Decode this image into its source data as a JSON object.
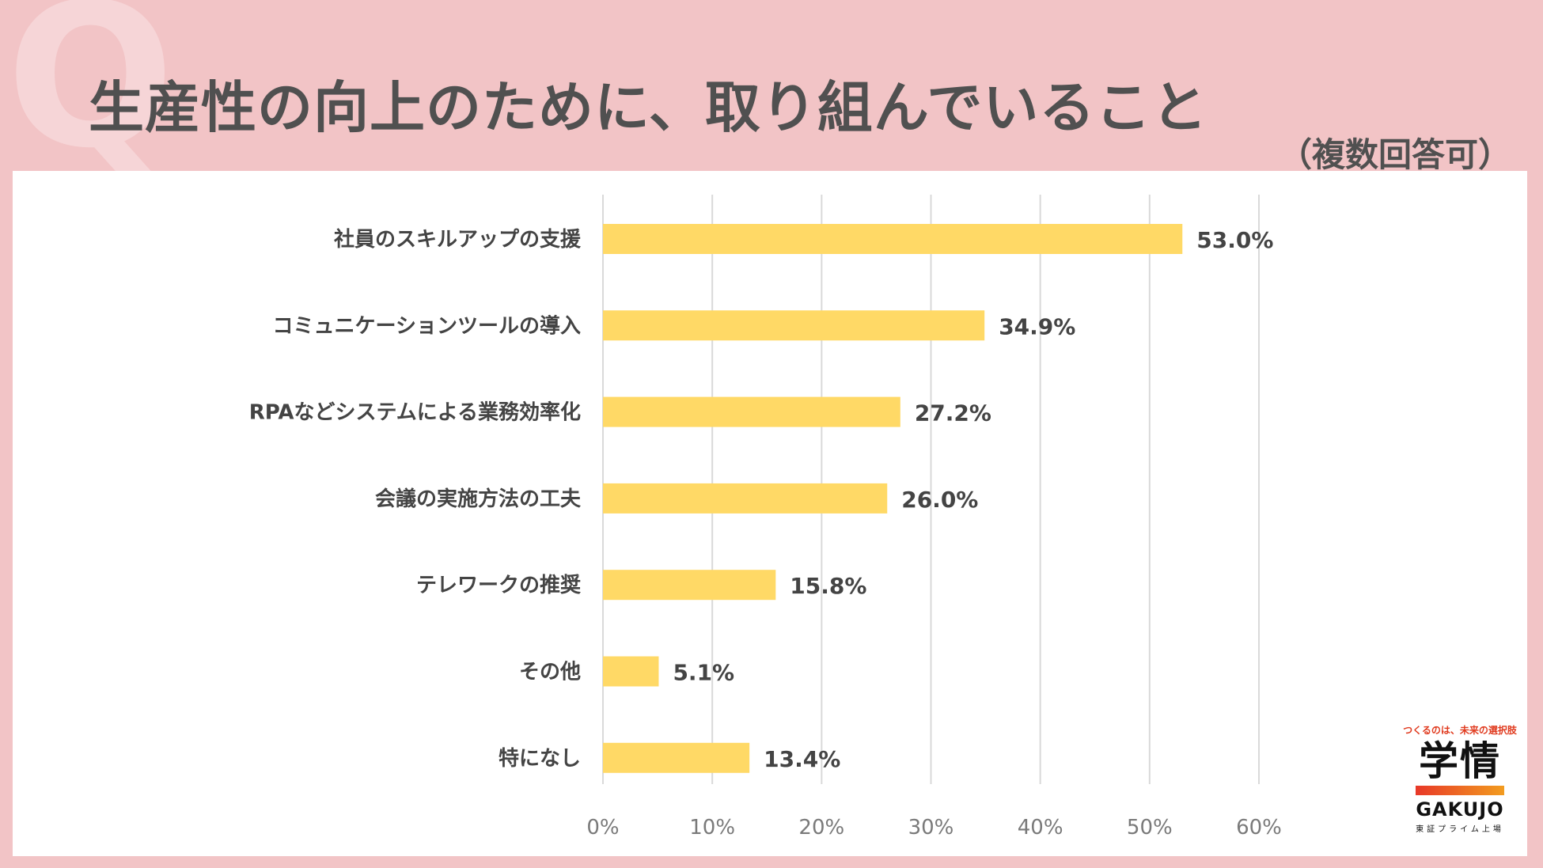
{
  "q_mark": "Q",
  "title": "生産性の向上のために、取り組んでいること",
  "subtitle": "（複数回答可）",
  "chart_data": {
    "type": "bar",
    "orientation": "horizontal",
    "categories": [
      "社員のスキルアップの支援",
      "コミュニケーションツールの導入",
      "RPAなどシステムによる業務効率化",
      "会議の実施方法の工夫",
      "テレワークの推奨",
      "その他",
      "特になし"
    ],
    "values": [
      53.0,
      34.9,
      27.2,
      26.0,
      15.8,
      5.1,
      13.4
    ],
    "value_labels": [
      "53.0%",
      "34.9%",
      "27.2%",
      "26.0%",
      "15.8%",
      "5.1%",
      "13.4%"
    ],
    "xlim": [
      0,
      60
    ],
    "ticks": [
      0,
      10,
      20,
      30,
      40,
      50,
      60
    ],
    "tick_labels": [
      "0%",
      "10%",
      "20%",
      "30%",
      "40%",
      "50%",
      "60%"
    ],
    "grid": true,
    "bar_color": "#ffd966"
  },
  "logo": {
    "tagline": "つくるのは、未来の選択肢",
    "kanji": "学情",
    "en": "GAKUJO",
    "sub": "東証プライム上場"
  }
}
